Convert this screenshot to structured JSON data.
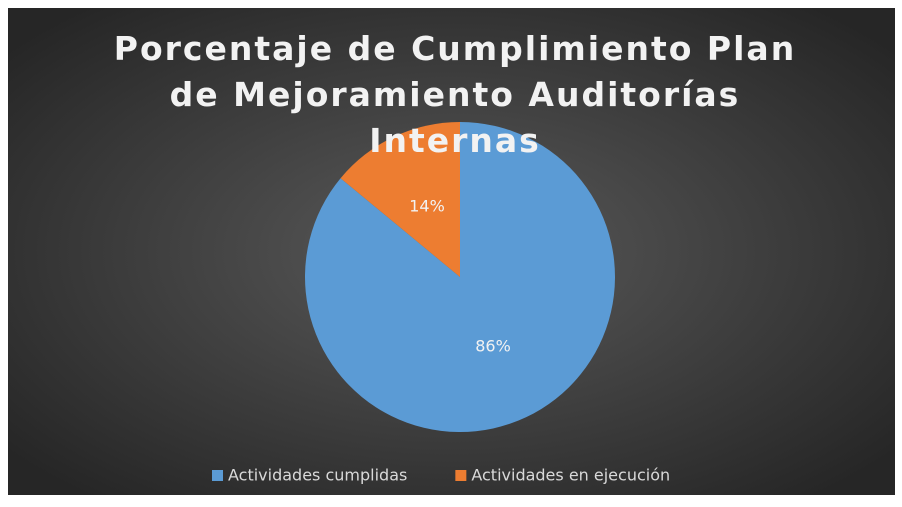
{
  "chart_data": {
    "type": "pie",
    "title": "Porcentaje de Cumplimiento Plan de Mejoramiento Auditorías Internas",
    "categories": [
      "Actividades cumplidas",
      "Actividades en ejecución"
    ],
    "values": [
      86,
      14
    ],
    "value_labels": [
      "86%",
      "14%"
    ],
    "colors": [
      "#5b9bd5",
      "#ed7d31"
    ],
    "legend": "bottom"
  }
}
